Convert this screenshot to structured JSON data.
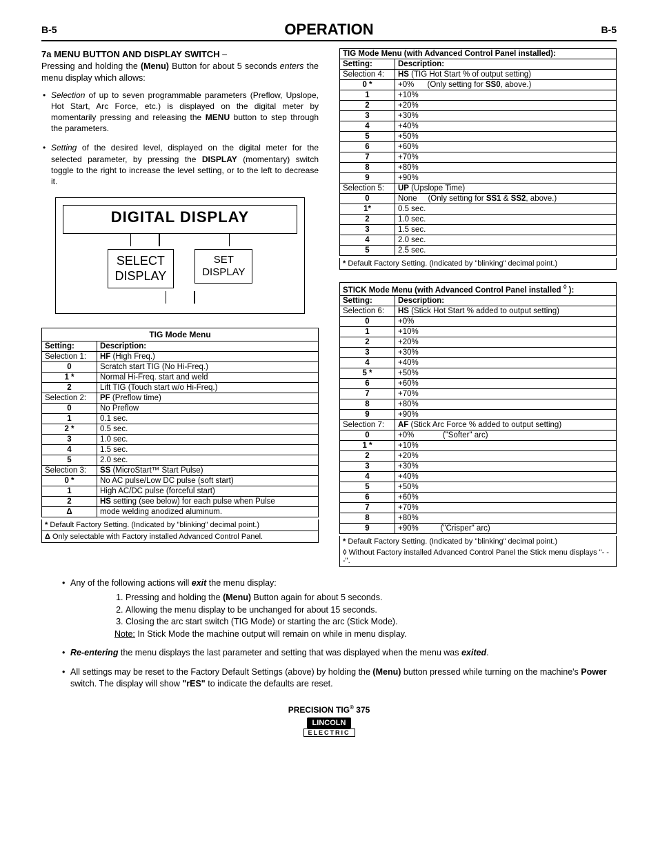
{
  "header": {
    "left": "B-5",
    "center": "OPERATION",
    "right": "B-5"
  },
  "intro": {
    "title": "7a MENU BUTTON AND DISPLAY SWITCH",
    "p1a": "Pressing and holding the ",
    "p1b": "(Menu)",
    "p1c": " Button for about 5 seconds ",
    "p1d": "enters",
    "p1e": " the menu display which allows:",
    "b1a": "Selection",
    "b1b": " of up to seven programmable parameters (Preflow, Upslope, Hot Start, Arc Force, etc.) is displayed on the digital meter by momentarily pressing and releasing the ",
    "b1c": "MENU",
    "b1d": " button to step through the parameters.",
    "b2a": "Setting",
    "b2b": " of the desired level, displayed on the digital meter for the selected parameter, by pressing the ",
    "b2c": "DISPLAY",
    "b2d": " (momentary) switch toggle to the right to increase the level setting, or to the left to decrease it."
  },
  "diagram": {
    "title": "DIGITAL DISPLAY",
    "left": "SELECT\nDISPLAY",
    "right": "SET\nDISPLAY"
  },
  "table1": {
    "caption": "TIG Mode Menu",
    "h1": "Setting:",
    "h2": "Description:",
    "rows": [
      [
        "Selection 1:",
        "<b>HF</b> (High Freq.)"
      ],
      [
        "0",
        "Scratch start TIG (No Hi-Freq.)"
      ],
      [
        "1 *",
        "Normal Hi-Freq. start and weld"
      ],
      [
        "2",
        "Lift TIG (Touch start w/o Hi-Freq.)"
      ],
      [
        "Selection 2:",
        "<b>PF</b> (Preflow time)"
      ],
      [
        "0",
        "No Preflow"
      ],
      [
        "1",
        "0.1 sec."
      ],
      [
        "2 *",
        "0.5 sec."
      ],
      [
        "3",
        "1.0 sec."
      ],
      [
        "4",
        "1.5 sec."
      ],
      [
        "5",
        "2.0 sec."
      ],
      [
        "Selection 3:",
        "<b>SS</b> (MicroStart™ Start Pulse)"
      ],
      [
        "0 *",
        "No AC pulse/Low DC pulse (soft start)"
      ],
      [
        "1",
        "High AC/DC pulse (forceful start)"
      ],
      [
        "2",
        "<b>HS</b> setting (see below) for each pulse when Pulse"
      ],
      [
        "Δ",
        "mode welding anodized aluminum."
      ]
    ],
    "foot1": "* Default Factory Setting. (Indicated by \"blinking\" decimal point.)",
    "foot2": "Δ Only selectable with Factory installed Advanced Control Panel."
  },
  "table2": {
    "caption": "TIG Mode Menu (with Advanced Control Panel installed):",
    "h1": "Setting:",
    "h2": "Description:",
    "rows": [
      [
        "Selection 4:",
        "<b>HS</b> (TIG Hot Start % of output setting)"
      ],
      [
        "0 *",
        "+0% &nbsp;&nbsp;&nbsp;&nbsp; (Only setting for <b>SS0</b>, above.)"
      ],
      [
        "1",
        "+10%"
      ],
      [
        "2",
        "+20%"
      ],
      [
        "3",
        "+30%"
      ],
      [
        "4",
        "+40%"
      ],
      [
        "5",
        "+50%"
      ],
      [
        "6",
        "+60%"
      ],
      [
        "7",
        "+70%"
      ],
      [
        "8",
        "+80%"
      ],
      [
        "9",
        "+90%"
      ],
      [
        "Selection 5:",
        "<b>UP</b> (Upslope Time)"
      ],
      [
        "0",
        "None &nbsp;&nbsp;&nbsp; (Only setting for <b>SS1</b> & <b>SS2</b>, above.)"
      ],
      [
        "1*",
        "0.5 sec."
      ],
      [
        "2",
        "1.0 sec."
      ],
      [
        "3",
        "1.5 sec."
      ],
      [
        "4",
        "2.0 sec."
      ],
      [
        "5",
        "2.5 sec."
      ]
    ],
    "foot": "* Default Factory Setting. (Indicated by \"blinking\" decimal point.)"
  },
  "table3": {
    "caption": "STICK Mode Menu (with Advanced Control Panel installed ◊ ):",
    "h1": "Setting:",
    "h2": "Description:",
    "rows": [
      [
        "Selection 6:",
        "<b>HS</b> (Stick Hot Start % added to output setting)"
      ],
      [
        "0",
        "+0%"
      ],
      [
        "1",
        "+10%"
      ],
      [
        "2",
        "+20%"
      ],
      [
        "3",
        "+30%"
      ],
      [
        "4",
        "+40%"
      ],
      [
        "5 *",
        "+50%"
      ],
      [
        "6",
        "+60%"
      ],
      [
        "7",
        "+70%"
      ],
      [
        "8",
        "+80%"
      ],
      [
        "9",
        "+90%"
      ],
      [
        "Selection 7:",
        "<b>AF</b> (Stick Arc Force % added to output setting)"
      ],
      [
        "0",
        "+0% &nbsp;&nbsp;&nbsp;&nbsp;&nbsp;&nbsp;&nbsp;&nbsp;&nbsp;&nbsp;&nbsp; (\"Softer\" arc)"
      ],
      [
        "1 *",
        "+10%"
      ],
      [
        "2",
        "+20%"
      ],
      [
        "3",
        "+30%"
      ],
      [
        "4",
        "+40%"
      ],
      [
        "5",
        "+50%"
      ],
      [
        "6",
        "+60%"
      ],
      [
        "7",
        "+70%"
      ],
      [
        "8",
        "+80%"
      ],
      [
        "9",
        "+90% &nbsp;&nbsp;&nbsp;&nbsp;&nbsp;&nbsp;&nbsp;&nbsp; (\"Crisper\" arc)"
      ]
    ],
    "foot1": "* Default Factory Setting. (Indicated by \"blinking\" decimal point.)",
    "foot2": "◊ Without Factory installed Advanced Control Panel the Stick menu displays \"- - -\"."
  },
  "bottom": {
    "b1": "Any of the following actions will <b><i>exit</i></b> the menu display:",
    "l1": "Pressing and holding the <b>(Menu)</b> Button again for about 5 seconds.",
    "l2": "Allowing the menu display to be unchanged for about 15 seconds.",
    "l3": "Closing the arc start switch (TIG Mode) or starting the arc (Stick Mode).",
    "note": "<span class='underline'>Note:</span> In Stick Mode the machine output will remain on while in menu display.",
    "b2": "<b><i>Re-entering</i></b> the menu displays the last parameter and setting that was displayed when the menu was <b><i>exited</i></b>.",
    "b3": "All settings may be reset to the Factory Default Settings (above) by holding the <b>(Menu)</b> button pressed while turning on the machine's <b>Power</b> switch. The display will show <b>\"rES\"</b> to indicate the defaults are reset."
  },
  "footer": {
    "product": "PRECISION TIG® 375",
    "brand1": "LINCOLN",
    "brand2": "ELECTRIC"
  }
}
